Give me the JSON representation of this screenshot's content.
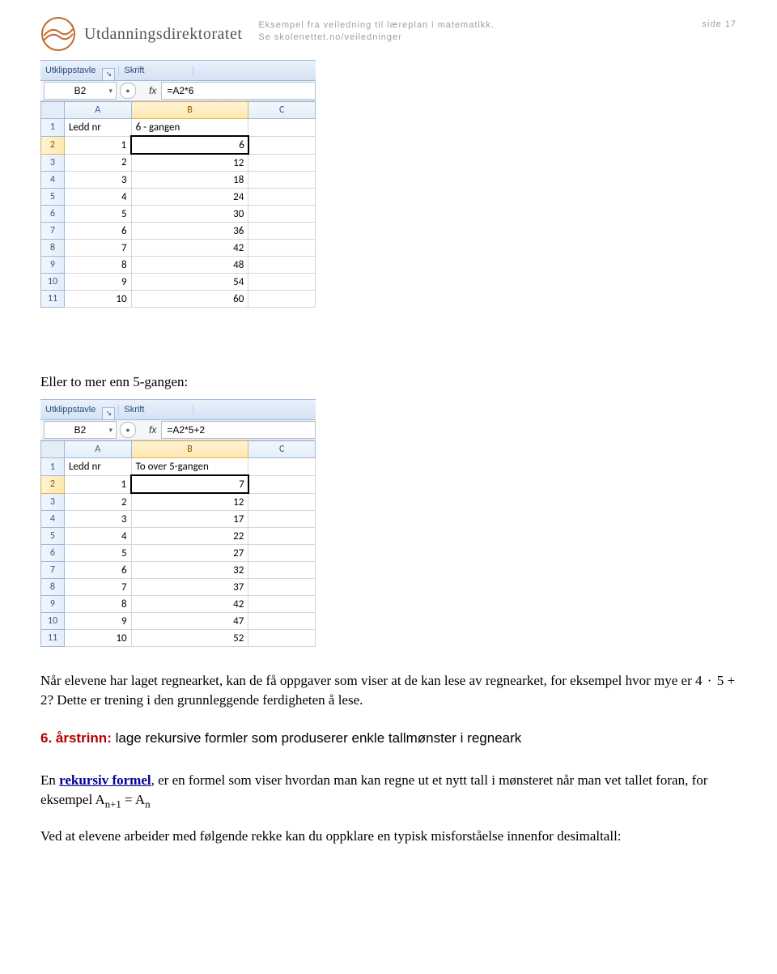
{
  "header": {
    "org_name": "Utdanningsdirektoratet",
    "mid_line1": "Eksempel fra veiledning til læreplan i matematikk.",
    "mid_line2": "Se skolenettet.no/veiledninger",
    "page_label": "side 17"
  },
  "excel1": {
    "ribbon_clipboard": "Utklippstavle",
    "ribbon_font": "Skrift",
    "namebox": "B2",
    "fx": "fx",
    "formula": "=A2*6",
    "colA": "A",
    "colB": "B",
    "colC": "C",
    "header_ledd": "Ledd nr",
    "header_b": "6 - gangen",
    "rows": [
      {
        "r": "1",
        "a": "Ledd nr",
        "b": "6 - gangen",
        "txt": true
      },
      {
        "r": "2",
        "a": "1",
        "b": "6",
        "sel": true
      },
      {
        "r": "3",
        "a": "2",
        "b": "12"
      },
      {
        "r": "4",
        "a": "3",
        "b": "18"
      },
      {
        "r": "5",
        "a": "4",
        "b": "24"
      },
      {
        "r": "6",
        "a": "5",
        "b": "30"
      },
      {
        "r": "7",
        "a": "6",
        "b": "36"
      },
      {
        "r": "8",
        "a": "7",
        "b": "42"
      },
      {
        "r": "9",
        "a": "8",
        "b": "48"
      },
      {
        "r": "10",
        "a": "9",
        "b": "54"
      },
      {
        "r": "11",
        "a": "10",
        "b": "60"
      }
    ]
  },
  "midtext": "Eller to mer enn 5-gangen:",
  "excel2": {
    "ribbon_clipboard": "Utklippstavle",
    "ribbon_font": "Skrift",
    "namebox": "B2",
    "fx": "fx",
    "formula": "=A2*5+2",
    "colA": "A",
    "colB": "B",
    "colC": "C",
    "rows": [
      {
        "r": "1",
        "a": "Ledd nr",
        "b": "To over 5-gangen",
        "txt": true
      },
      {
        "r": "2",
        "a": "1",
        "b": "7",
        "sel": true
      },
      {
        "r": "3",
        "a": "2",
        "b": "12"
      },
      {
        "r": "4",
        "a": "3",
        "b": "17"
      },
      {
        "r": "5",
        "a": "4",
        "b": "22"
      },
      {
        "r": "6",
        "a": "5",
        "b": "27"
      },
      {
        "r": "7",
        "a": "6",
        "b": "32"
      },
      {
        "r": "8",
        "a": "7",
        "b": "37"
      },
      {
        "r": "9",
        "a": "8",
        "b": "42"
      },
      {
        "r": "10",
        "a": "9",
        "b": "47"
      },
      {
        "r": "11",
        "a": "10",
        "b": "52"
      }
    ]
  },
  "para1a": "Når elevene har laget regnearket, kan de få oppgaver som viser at de kan lese av regnearket, for eksempel hvor mye er 4",
  "para1b": "5 + 2? Dette er trening i den grunnleggende ferdigheten å lese.",
  "dot": "·",
  "section": {
    "num": "6. årstrinn:",
    "rest": " lage rekursive formler som produserer enkle tallmønster i regneark"
  },
  "para2a": "En ",
  "para2_term": "rekursiv formel",
  "para2b": ", er en formel som viser hvordan man kan regne ut et nytt tall i mønsteret når man vet tallet foran, for eksempel A",
  "para2_sub1": "n+1",
  "para2_eq": " = A",
  "para2_sub2": "n",
  "para3": "Ved at elevene arbeider med følgende rekke kan du oppklare en typisk misforståelse innenfor desimaltall:"
}
